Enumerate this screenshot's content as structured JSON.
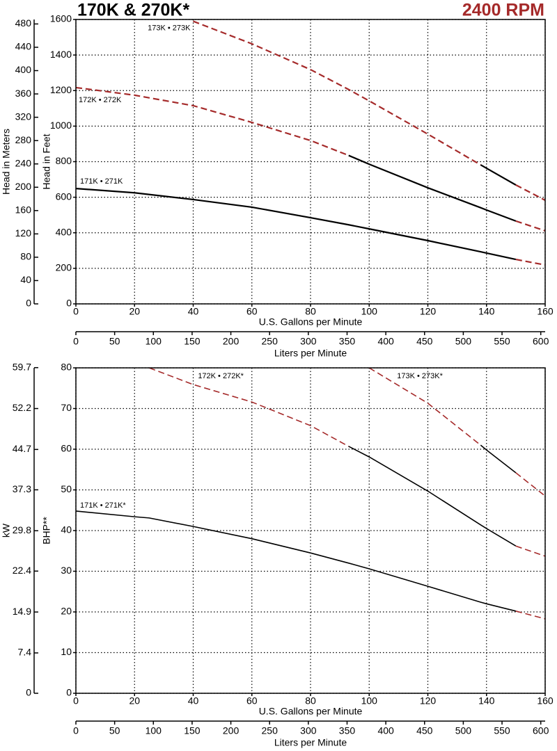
{
  "header": {
    "title": "170K & 270K*",
    "subtitle": "2400 RPM"
  },
  "chart_data": [
    {
      "type": "line",
      "xlabel": "U.S. Gallons per Minute",
      "ylabel": "Head in Feet",
      "y2label": "Head in Meters",
      "x2label": "Liters per Minute",
      "x": [
        0,
        20,
        40,
        60,
        80,
        93,
        100,
        120,
        138,
        140,
        150,
        160
      ],
      "xlim": [
        0,
        160
      ],
      "xticks": [
        0,
        20,
        40,
        60,
        80,
        100,
        120,
        140,
        160
      ],
      "ylim": [
        0,
        1600
      ],
      "yticks": [
        0,
        200,
        400,
        600,
        800,
        1000,
        1200,
        1400,
        1600
      ],
      "y2lim": [
        0,
        487.68
      ],
      "y2ticks": [
        0,
        40,
        80,
        120,
        160,
        200,
        240,
        280,
        320,
        360,
        400,
        440,
        480
      ],
      "x2lim": [
        0,
        605.67
      ],
      "x2ticks": [
        0,
        50,
        100,
        150,
        200,
        250,
        300,
        350,
        400,
        450,
        500,
        550,
        600
      ],
      "grid": true,
      "solid_color": "#000000",
      "dashed_color": "#a52a2a",
      "series": [
        {
          "name": "171K • 271K",
          "values": [
            649,
            625,
            587,
            544,
            485,
            445,
            422,
            356,
            293,
            286,
            250,
            219
          ],
          "styles": [
            "solid",
            "solid",
            "solid",
            "solid",
            "solid",
            "solid",
            "solid",
            "solid",
            "solid",
            "solid",
            "dashed"
          ]
        },
        {
          "name": "172K • 272K",
          "values": [
            1217,
            1174,
            1115,
            1021,
            919,
            835,
            786,
            653,
            541,
            528,
            466,
            411
          ],
          "styles": [
            "dashed",
            "dashed",
            "dashed",
            "dashed",
            "dashed",
            "solid",
            "solid",
            "solid",
            "solid",
            "solid",
            "dashed"
          ]
        },
        {
          "name": "173K • 273K",
          "values": [
            null,
            null,
            1590,
            1463,
            1318,
            1206,
            1142,
            955,
            782,
            763,
            669,
            583
          ],
          "styles": [
            "dashed",
            "dashed",
            "dashed",
            "dashed",
            "dashed",
            "dashed",
            "dashed",
            "dashed",
            "solid",
            "solid",
            "dashed"
          ]
        }
      ]
    },
    {
      "type": "line",
      "xlabel": "U.S. Gallons per Minute",
      "ylabel": "BHP**",
      "y2label": "kW",
      "x2label": "Liters per Minute",
      "x": [
        0,
        20,
        25,
        40,
        60,
        80,
        93,
        100,
        120,
        138,
        140,
        150,
        160
      ],
      "xlim": [
        0,
        160
      ],
      "xticks": [
        0,
        20,
        40,
        60,
        80,
        100,
        120,
        140,
        160
      ],
      "ylim": [
        0,
        80
      ],
      "yticks": [
        0,
        10,
        20,
        30,
        40,
        50,
        60,
        70,
        80
      ],
      "y2lim": [
        0,
        59.66
      ],
      "y2ticks": [
        0,
        7.4,
        14.9,
        22.4,
        29.8,
        37.3,
        44.7,
        52.2,
        59.7
      ],
      "x2lim": [
        0,
        605.67
      ],
      "x2ticks": [
        0,
        50,
        100,
        150,
        200,
        250,
        300,
        350,
        400,
        450,
        500,
        550,
        600
      ],
      "grid": true,
      "solid_color": "#000000",
      "dashed_color": "#a52a2a",
      "series": [
        {
          "name": "171K • 271K*",
          "values": [
            44.8,
            43.4,
            43.1,
            41,
            38,
            34.5,
            32,
            30.6,
            26.3,
            22.4,
            22,
            20.2,
            18.3
          ],
          "styles": [
            "solid",
            "solid",
            "solid",
            "solid",
            "solid",
            "solid",
            "solid",
            "solid",
            "solid",
            "solid",
            "solid",
            "dashed"
          ]
        },
        {
          "name": "172K • 272K*",
          "values": [
            null,
            null,
            80,
            75.9,
            71.6,
            65.8,
            60.7,
            58.1,
            49.7,
            41.4,
            40.5,
            36.2,
            33.7
          ],
          "styles": [
            "dashed",
            "dashed",
            "dashed",
            "dashed",
            "dashed",
            "dashed",
            "solid",
            "solid",
            "solid",
            "solid",
            "solid",
            "dashed"
          ]
        },
        {
          "name": "173K • 273K*",
          "values": [
            null,
            null,
            null,
            null,
            null,
            null,
            null,
            80,
            71.3,
            61,
            59.8,
            54.2,
            48.5
          ],
          "styles": [
            "dashed",
            "dashed",
            "dashed",
            "dashed",
            "dashed",
            "dashed",
            "dashed",
            "dashed",
            "dashed",
            "solid",
            "solid",
            "dashed"
          ]
        }
      ]
    }
  ]
}
